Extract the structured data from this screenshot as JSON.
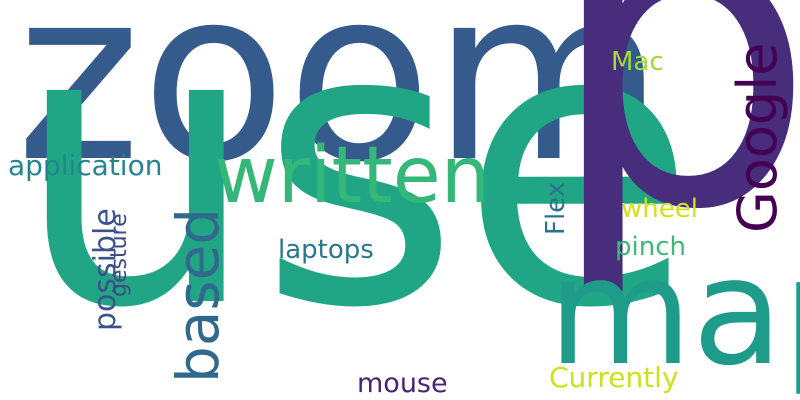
{
  "words": {
    "zoom": {
      "text": "zoom",
      "color": "#355b8d"
    },
    "p": {
      "text": "p",
      "color": "#472d7b"
    },
    "use": {
      "text": "use",
      "color": "#21a685"
    },
    "map": {
      "text": "map",
      "color": "#1e9c89"
    },
    "written": {
      "text": "written",
      "color": "#35b779"
    },
    "based": {
      "text": "based",
      "color": "#31688e"
    },
    "google": {
      "text": "Google",
      "color": "#440154"
    },
    "application": {
      "text": "application",
      "color": "#25858e"
    },
    "possible": {
      "text": "possible",
      "color": "#3b528b"
    },
    "gesture": {
      "text": "gesture",
      "color": "#3e4a89"
    },
    "laptops": {
      "text": "laptops",
      "color": "#2a788e"
    },
    "flex": {
      "text": "Flex",
      "color": "#2c728e"
    },
    "mac": {
      "text": "Mac",
      "color": "#a0da39"
    },
    "wheel": {
      "text": "wheel",
      "color": "#d0e11c"
    },
    "pinch": {
      "text": "pinch",
      "color": "#3bbb75"
    },
    "mouse": {
      "text": "mouse",
      "color": "#482475"
    },
    "currently": {
      "text": "Currently",
      "color": "#cde11d"
    }
  }
}
